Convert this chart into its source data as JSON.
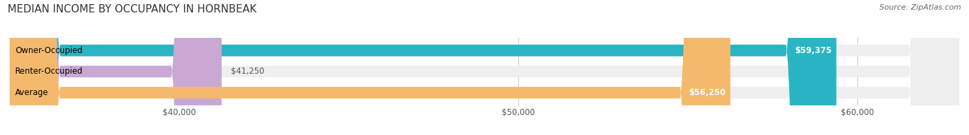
{
  "title": "MEDIAN INCOME BY OCCUPANCY IN HORNBEAK",
  "source": "Source: ZipAtlas.com",
  "categories": [
    "Owner-Occupied",
    "Renter-Occupied",
    "Average"
  ],
  "values": [
    59375,
    41250,
    56250
  ],
  "bar_colors": [
    "#29b5c3",
    "#c9a8d4",
    "#f5b96e"
  ],
  "bar_bg_color": "#efefef",
  "value_labels": [
    "$59,375",
    "$41,250",
    "$56,250"
  ],
  "xmin": 35000,
  "xmax": 63000,
  "xticks": [
    40000,
    50000,
    60000
  ],
  "xtick_labels": [
    "$40,000",
    "$50,000",
    "$60,000"
  ],
  "title_fontsize": 11,
  "label_fontsize": 8.5,
  "source_fontsize": 8,
  "bar_height": 0.55,
  "background_color": "#ffffff",
  "grid_color": "#cccccc"
}
